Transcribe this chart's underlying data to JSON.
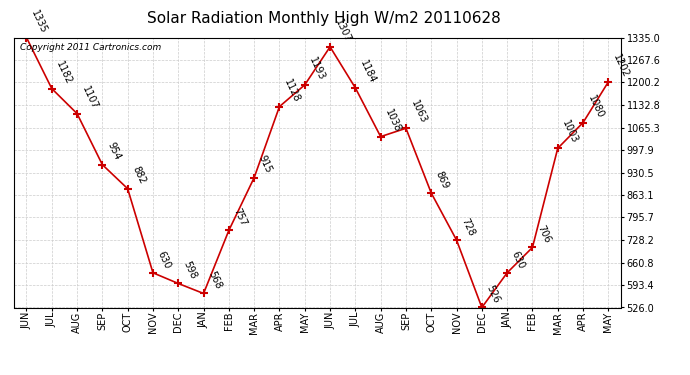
{
  "title": "Solar Radiation Monthly High W/m2 20110628",
  "copyright": "Copyright 2011 Cartronics.com",
  "categories": [
    "JUN",
    "JUL",
    "AUG",
    "SEP",
    "OCT",
    "NOV",
    "DEC",
    "JAN",
    "FEB",
    "MAR",
    "APR",
    "MAY",
    "JUN",
    "JUL",
    "AUG",
    "SEP",
    "OCT",
    "NOV",
    "DEC",
    "JAN",
    "FEB",
    "MAR",
    "APR",
    "MAY"
  ],
  "values": [
    1335,
    1182,
    1107,
    954,
    882,
    630,
    598,
    568,
    757,
    915,
    1128,
    1193,
    1307,
    1184,
    1038,
    1063,
    869,
    728,
    526,
    630,
    706,
    1003,
    1080,
    1202
  ],
  "line_color": "#cc0000",
  "marker": "+",
  "marker_size": 6,
  "marker_color": "#cc0000",
  "ylim": [
    526.0,
    1335.0
  ],
  "yticks": [
    526.0,
    593.4,
    660.8,
    728.2,
    795.7,
    863.1,
    930.5,
    997.9,
    1065.3,
    1132.8,
    1200.2,
    1267.6,
    1335.0
  ],
  "background_color": "#ffffff",
  "grid_color": "#cccccc",
  "title_fontsize": 11,
  "label_fontsize": 7,
  "annotation_fontsize": 7,
  "copyright_fontsize": 6.5
}
